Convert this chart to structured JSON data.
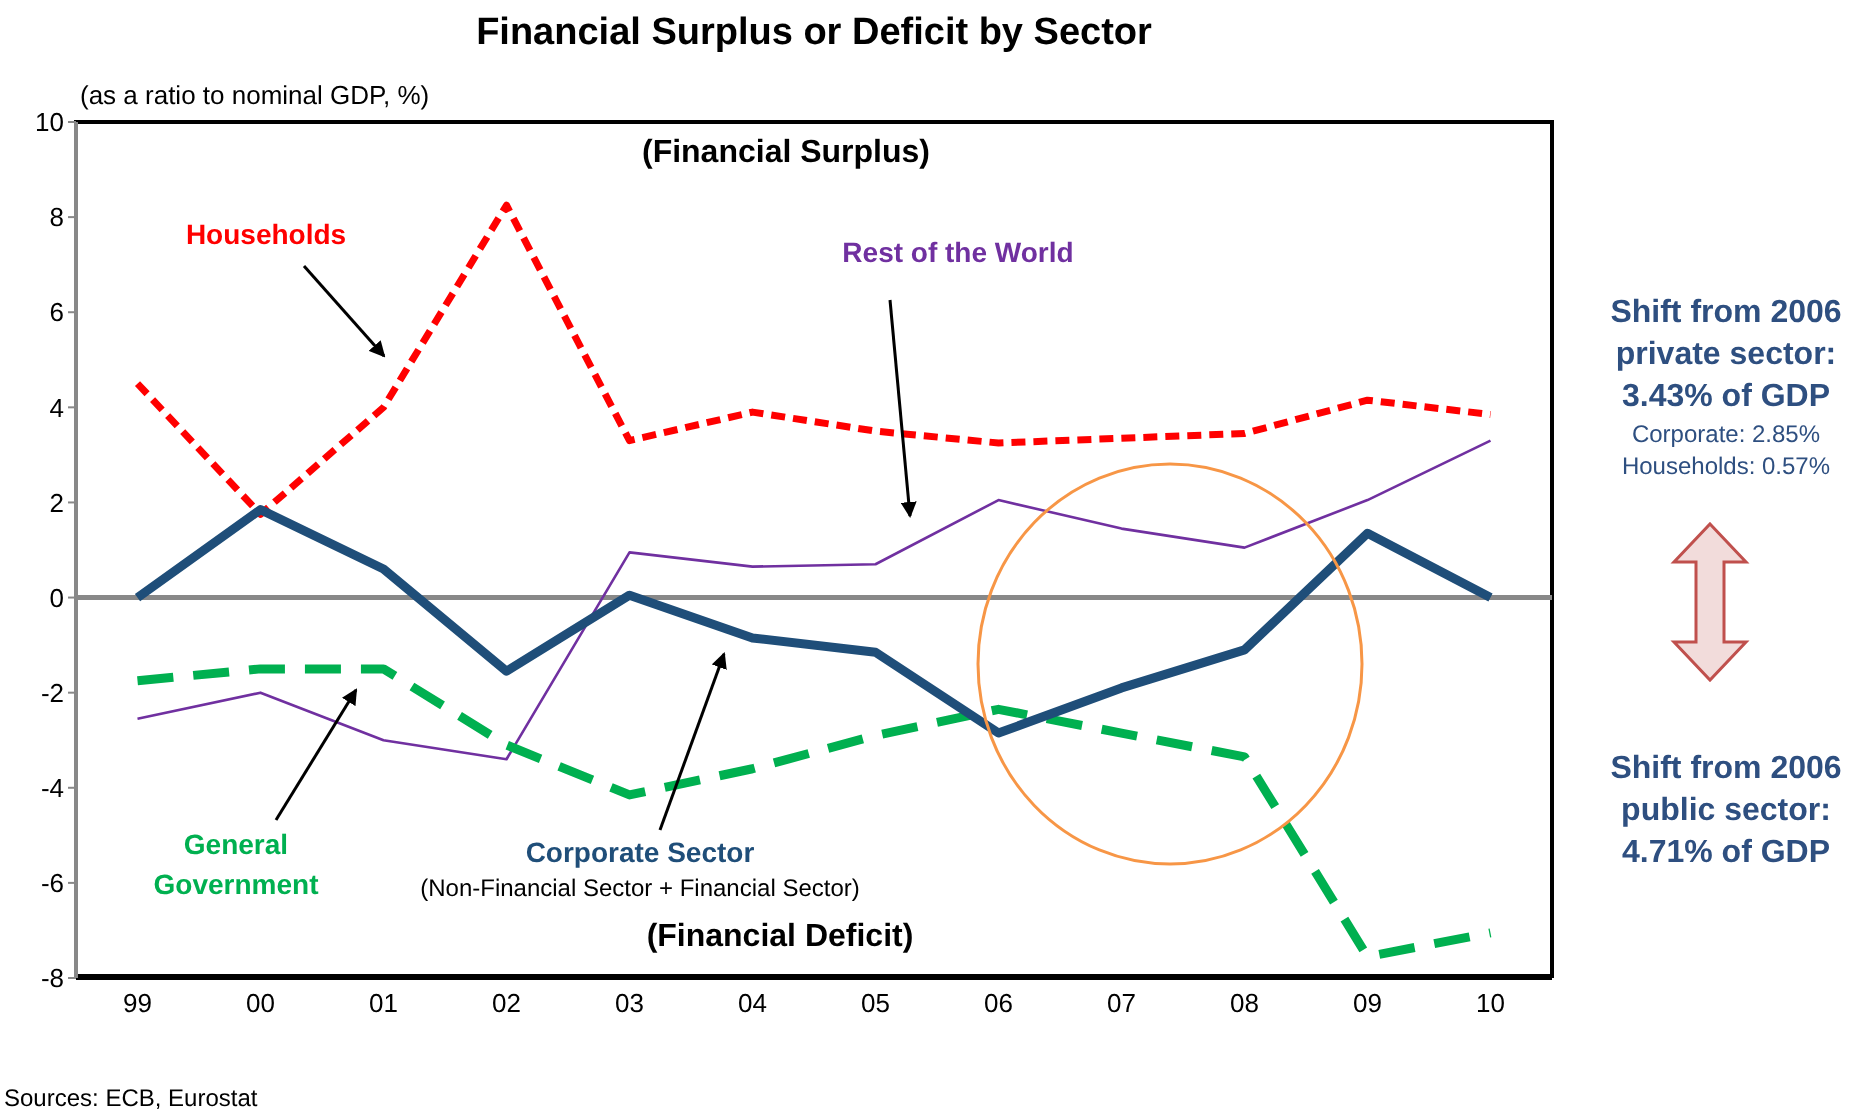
{
  "chart_data": {
    "type": "line",
    "title": "Financial Surplus or Deficit by Sector",
    "ylabel": "(as a ratio to nominal GDP, %)",
    "categories": [
      "99",
      "00",
      "01",
      "02",
      "03",
      "04",
      "05",
      "06",
      "07",
      "08",
      "09",
      "10"
    ],
    "series": [
      {
        "name": "Households",
        "color": "#ff0000",
        "line_style": "dashed",
        "values": [
          4.5,
          1.75,
          4.0,
          8.25,
          3.3,
          3.9,
          3.5,
          3.25,
          3.35,
          3.45,
          4.15,
          3.85
        ]
      },
      {
        "name": "Rest of the World",
        "color": "#7030a0",
        "line_style": "solid",
        "values": [
          -2.55,
          -2.0,
          -3.0,
          -3.4,
          0.95,
          0.65,
          0.7,
          2.05,
          1.45,
          1.05,
          2.05,
          3.3
        ]
      },
      {
        "name": "General Government",
        "color": "#00b050",
        "line_style": "dashed",
        "values": [
          -1.75,
          -1.5,
          -1.5,
          -3.1,
          -4.15,
          -3.6,
          -2.9,
          -2.35,
          -2.85,
          -3.35,
          -7.55,
          -7.05
        ]
      },
      {
        "name": "Corporate Sector",
        "color": "#1f4e79",
        "line_style": "solid",
        "values": [
          0.0,
          1.85,
          0.6,
          -1.55,
          0.05,
          -0.85,
          -1.15,
          -2.85,
          -1.9,
          -1.1,
          1.35,
          0.0
        ]
      }
    ],
    "ylim": [
      -8,
      10
    ],
    "yticks": [
      -8,
      -6,
      -4,
      -2,
      0,
      2,
      4,
      6,
      8,
      10
    ],
    "ref_lines": [
      {
        "axis": "y",
        "value": 0,
        "color": "#888888"
      }
    ],
    "grid": false,
    "legend": false,
    "marker": "none",
    "annotations": [
      "(Financial Surplus)",
      "(Financial Deficit)",
      "(Non-Financial Sector + Financial Sector)",
      "Shift from 2006\nprivate sector:\n3.43% of GDP",
      "Corporate: 2.85%\nHouseholds: 0.57%",
      "Shift from 2006\npublic sector:\n4.71% of GDP",
      "Sources: ECB, Eurostat"
    ]
  }
}
